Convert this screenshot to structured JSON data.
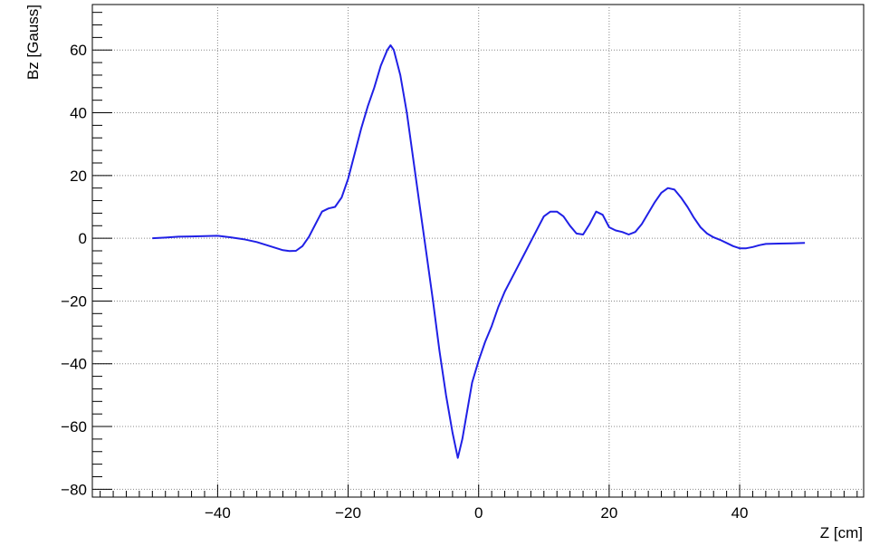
{
  "chart_data": {
    "type": "line",
    "title": "",
    "xlabel": "Z [cm]",
    "ylabel": "Bz [Gauss]",
    "xlim": [
      -59.2,
      59.0
    ],
    "ylim": [
      -82.5,
      74.5
    ],
    "x_ticks": [
      -40,
      -20,
      0,
      20,
      40
    ],
    "x_tick_labels": [
      "−40",
      "−20",
      "0",
      "20",
      "40"
    ],
    "y_ticks": [
      -80,
      -60,
      -40,
      -20,
      0,
      20,
      40,
      60
    ],
    "y_tick_labels": [
      "−80",
      "−60",
      "−40",
      "−20",
      "0",
      "20",
      "40",
      "60"
    ],
    "grid": true,
    "grid_style": "dotted",
    "legend": "none",
    "colors": {
      "line": "#2020e6",
      "axis": "#000000",
      "grid": "#888888"
    },
    "series": [
      {
        "x": [
          -50,
          -48,
          -46,
          -44,
          -42,
          -40,
          -38,
          -36,
          -34,
          -32,
          -30,
          -29,
          -28,
          -27,
          -26,
          -25,
          -24,
          -23,
          -22,
          -21,
          -20,
          -19,
          -18,
          -17,
          -16,
          -15,
          -14,
          -13.5,
          -13,
          -12,
          -11,
          -10,
          -9,
          -8,
          -7,
          -6,
          -5,
          -4,
          -3.2,
          -2.5,
          -2,
          -1,
          0,
          1,
          2,
          3,
          4,
          5,
          6,
          7,
          8,
          9,
          10,
          11,
          12,
          13,
          14,
          15,
          16,
          17,
          18,
          19,
          20,
          21,
          22,
          23,
          24,
          25,
          26,
          27,
          28,
          29,
          30,
          31,
          32,
          33,
          34,
          35,
          36,
          37,
          38,
          39,
          40,
          41,
          42,
          43,
          44,
          46,
          48,
          50
        ],
        "y": [
          0,
          0.2,
          0.5,
          0.6,
          0.7,
          0.8,
          0.3,
          -0.3,
          -1.2,
          -2.5,
          -3.8,
          -4.1,
          -4.0,
          -2.5,
          0.5,
          4.5,
          8.5,
          9.5,
          10,
          13,
          19,
          27,
          35,
          42,
          48,
          55,
          60,
          61.5,
          60,
          52,
          40,
          25,
          10,
          -5,
          -20,
          -36,
          -50,
          -62,
          -70,
          -64,
          -58,
          -46,
          -39,
          -33,
          -28,
          -22,
          -17,
          -13,
          -9,
          -5,
          -1,
          3,
          7,
          8.5,
          8.5,
          7,
          4,
          1.5,
          1.2,
          4.5,
          8.5,
          7.5,
          3.5,
          2.5,
          2,
          1.2,
          2,
          4.5,
          8,
          11.5,
          14.5,
          16,
          15.5,
          13,
          10,
          6.5,
          3.5,
          1.5,
          0.3,
          -0.5,
          -1.5,
          -2.5,
          -3.2,
          -3.2,
          -2.8,
          -2.2,
          -1.8,
          -1.7,
          -1.6,
          -1.5
        ]
      }
    ]
  }
}
